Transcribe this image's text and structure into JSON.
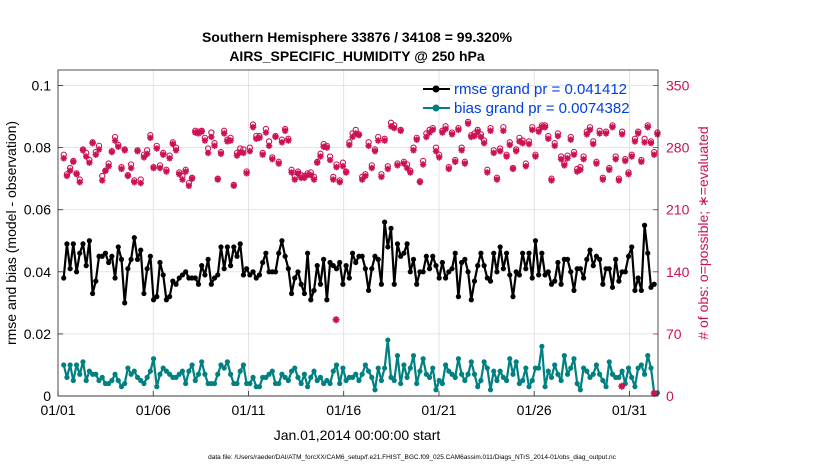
{
  "chart_data": {
    "type": "line",
    "title": "Southern Hemisphere 33876 / 34108 = 99.320%",
    "subtitle": "AIRS_SPECIFIC_HUMIDITY @ 250 hPa",
    "xlabel": "Jan.01,2014 00:00:00 start",
    "ylabel": "rmse and bias (model - observation)",
    "y2label": "# of obs: o=possible; ∗=evaluated",
    "footer": "data file: /Users/raeder/DAI/ATM_forcXX/CAM6_setup/f.e21.FHIST_BGC.f09_025.CAM6assim.011/Diags_NTrS_2014-01/obs_diag_output.nc",
    "ylim": [
      0,
      0.105
    ],
    "y2lim": [
      0,
      367.5
    ],
    "xlim": [
      0,
      31.5
    ],
    "x_ticks": [
      "01/01",
      "01/06",
      "01/11",
      "01/16",
      "01/21",
      "01/26",
      "01/31"
    ],
    "y_ticks": [
      "0",
      "0.02",
      "0.04",
      "0.06",
      "0.08",
      "0.1"
    ],
    "y2_ticks": [
      "0",
      "70",
      "140",
      "210",
      "280",
      "350"
    ],
    "grid": true,
    "legend_position": "top-right",
    "colors": {
      "rmse": "#000000",
      "bias": "#008080",
      "obs": "#cc1155",
      "legend_text": "#0040e0",
      "axis2": "#cc1155"
    },
    "series": [
      {
        "name": "rmse grand pr = 0.041412",
        "axis": "left",
        "values": [
          0.038,
          0.049,
          0.041,
          0.049,
          0.04,
          0.046,
          0.049,
          0.042,
          0.05,
          0.033,
          0.037,
          0.045,
          0.045,
          0.046,
          0.043,
          0.045,
          0.038,
          0.048,
          0.044,
          0.03,
          0.041,
          0.044,
          0.051,
          0.044,
          0.047,
          0.033,
          0.041,
          0.045,
          0.031,
          0.032,
          0.043,
          0.039,
          0.031,
          0.032,
          0.037,
          0.036,
          0.038,
          0.039,
          0.04,
          0.038,
          0.038,
          0.038,
          0.036,
          0.042,
          0.039,
          0.044,
          0.036,
          0.038,
          0.039,
          0.048,
          0.041,
          0.048,
          0.042,
          0.048,
          0.045,
          0.049,
          0.039,
          0.041,
          0.039,
          0.04,
          0.038,
          0.039,
          0.043,
          0.046,
          0.04,
          0.04,
          0.04,
          0.046,
          0.05,
          0.045,
          0.041,
          0.033,
          0.038,
          0.04,
          0.036,
          0.033,
          0.046,
          0.031,
          0.034,
          0.042,
          0.036,
          0.044,
          0.031,
          0.043,
          0.042,
          0.041,
          0.043,
          0.036,
          0.042,
          0.038,
          0.046,
          0.043,
          0.045,
          0.045,
          0.041,
          0.034,
          0.041,
          0.045,
          0.044,
          0.036,
          0.056,
          0.048,
          0.054,
          0.036,
          0.049,
          0.045,
          0.046,
          0.049,
          0.04,
          0.044,
          0.036,
          0.04,
          0.04,
          0.045,
          0.041,
          0.045,
          0.042,
          0.038,
          0.043,
          0.038,
          0.04,
          0.041,
          0.046,
          0.032,
          0.043,
          0.044,
          0.04,
          0.031,
          0.037,
          0.042,
          0.046,
          0.042,
          0.038,
          0.037,
          0.046,
          0.04,
          0.048,
          0.041,
          0.046,
          0.039,
          0.032,
          0.04,
          0.039,
          0.046,
          0.041,
          0.046,
          0.038,
          0.05,
          0.039,
          0.046,
          0.039,
          0.04,
          0.036,
          0.037,
          0.043,
          0.036,
          0.044,
          0.044,
          0.04,
          0.034,
          0.041,
          0.041,
          0.038,
          0.044,
          0.047,
          0.042,
          0.045,
          0.044,
          0.036,
          0.041,
          0.041,
          0.035,
          0.044,
          0.037,
          0.04,
          0.04,
          0.045,
          0.048,
          0.034,
          0.038,
          0.034,
          0.055,
          0.046,
          0.035,
          0.036
        ]
      },
      {
        "name": "bias grand pr = 0.0074382",
        "axis": "left",
        "values": [
          0.01,
          0.006,
          0.01,
          0.005,
          0.01,
          0.007,
          0.011,
          0.005,
          0.008,
          0.007,
          0.007,
          0.005,
          0.006,
          0.004,
          0.004,
          0.005,
          0.007,
          0.005,
          0.003,
          0.004,
          0.009,
          0.007,
          0.008,
          0.006,
          0.005,
          0.004,
          0.006,
          0.008,
          0.012,
          0.003,
          0.007,
          0.009,
          0.008,
          0.007,
          0.006,
          0.006,
          0.007,
          0.008,
          0.004,
          0.008,
          0.01,
          0.005,
          0.007,
          0.011,
          0.007,
          0.004,
          0.004,
          0.004,
          0.007,
          0.01,
          0.009,
          0.011,
          0.007,
          0.004,
          0.004,
          0.008,
          0.01,
          0.004,
          0.004,
          0.006,
          0.003,
          0.003,
          0.006,
          0.006,
          0.007,
          0.008,
          0.004,
          0.004,
          0.007,
          0.006,
          0.005,
          0.008,
          0.009,
          0.006,
          0.004,
          0.007,
          0.003,
          0.006,
          0.008,
          0.005,
          0.006,
          0.004,
          0.005,
          0.004,
          0.008,
          0.01,
          0.004,
          0.009,
          0.005,
          0.006,
          0.006,
          0.007,
          0.005,
          0.007,
          0.01,
          0.008,
          0.006,
          0.002,
          0.009,
          0.005,
          0.009,
          0.018,
          0.006,
          0.005,
          0.013,
          0.004,
          0.01,
          0.006,
          0.009,
          0.013,
          0.004,
          0.008,
          0.012,
          0.007,
          0.006,
          0.009,
          0.002,
          0.005,
          0.004,
          0.01,
          0.008,
          0.007,
          0.006,
          0.012,
          0.007,
          0.005,
          0.007,
          0.011,
          0.007,
          0.003,
          0.005,
          0.011,
          0.009,
          0.002,
          0.008,
          0.005,
          0.008,
          0.006,
          0.005,
          0.012,
          0.007,
          0.011,
          0.004,
          0.005,
          0.009,
          0.003,
          0.005,
          0.009,
          0.009,
          0.016,
          0.003,
          0.008,
          0.006,
          0.01,
          0.007,
          0.005,
          0.013,
          0.007,
          0.009,
          0.012,
          0.004,
          0.002,
          0.009,
          0.008,
          0.006,
          0.007,
          0.01,
          0.007,
          0.005,
          0.003,
          0.011,
          0.007,
          0.006,
          0.006,
          0.008,
          0.004,
          0.009,
          0.006,
          0.003,
          0.009,
          0.01,
          0.007,
          0.013,
          0.009,
          0.001,
          0.001
        ]
      },
      {
        "name": "# of obs possible",
        "axis": "right",
        "marker": "o",
        "values": [
          272,
          250,
          257,
          265,
          251,
          244,
          278,
          274,
          266,
          286,
          275,
          282,
          248,
          254,
          262,
          276,
          292,
          283,
          258,
          278,
          249,
          261,
          243,
          277,
          244,
          272,
          277,
          294,
          258,
          282,
          260,
          274,
          255,
          271,
          286,
          280,
          252,
          248,
          255,
          240,
          246,
          299,
          298,
          299,
          291,
          279,
          297,
          285,
          245,
          275,
          299,
          289,
          291,
          238,
          274,
          279,
          278,
          253,
          280,
          306,
          293,
          293,
          274,
          301,
          287,
          269,
          293,
          264,
          289,
          301,
          290,
          255,
          247,
          253,
          249,
          248,
          251,
          252,
          247,
          264,
          273,
          284,
          282,
          270,
          247,
          261,
          243,
          263,
          253,
          286,
          296,
          300,
          295,
          247,
          250,
          286,
          260,
          278,
          292,
          250,
          290,
          259,
          308,
          305,
          262,
          300,
          264,
          261,
          254,
          280,
          291,
          242,
          265,
          296,
          300,
          302,
          280,
          272,
          299,
          304,
          258,
          297,
          266,
          302,
          280,
          264,
          309,
          294,
          296,
          300,
          295,
          288,
          255,
          302,
          277,
          246,
          279,
          303,
          272,
          286,
          257,
          278,
          291,
          288,
          262,
          287,
          303,
          272,
          300,
          305,
          305,
          293,
          245,
          285,
          296,
          270,
          262,
          271,
          292,
          275,
          256,
          258,
          270,
          298,
          303,
          287,
          264,
          299,
          246,
          298,
          257,
          305,
          270,
          245,
          298,
          267,
          252,
          272,
          290,
          298,
          266,
          290,
          305,
          287,
          275,
          297
        ]
      },
      {
        "name": "# of obs evaluated",
        "axis": "right",
        "marker": "*",
        "values": [
          268,
          248,
          254,
          264,
          250,
          241,
          277,
          270,
          263,
          285,
          272,
          278,
          243,
          254,
          259,
          275,
          288,
          281,
          256,
          277,
          248,
          257,
          241,
          276,
          240,
          269,
          273,
          291,
          257,
          279,
          257,
          272,
          253,
          268,
          284,
          277,
          250,
          244,
          253,
          237,
          245,
          297,
          296,
          298,
          288,
          274,
          292,
          282,
          244,
          273,
          296,
          287,
          288,
          237,
          271,
          275,
          274,
          251,
          276,
          303,
          290,
          291,
          272,
          297,
          282,
          267,
          292,
          262,
          286,
          299,
          288,
          252,
          244,
          251,
          246,
          246,
          249,
          249,
          244,
          263,
          270,
          281,
          280,
          266,
          244,
          258,
          241,
          259,
          252,
          283,
          292,
          296,
          294,
          244,
          248,
          282,
          257,
          276,
          288,
          247,
          288,
          256,
          304,
          302,
          260,
          299,
          262,
          257,
          252,
          277,
          289,
          241,
          261,
          292,
          297,
          300,
          276,
          269,
          297,
          301,
          256,
          295,
          264,
          300,
          277,
          262,
          307,
          292,
          293,
          298,
          292,
          285,
          252,
          299,
          274,
          244,
          276,
          299,
          270,
          283,
          256,
          276,
          287,
          285,
          259,
          284,
          300,
          270,
          298,
          303,
          303,
          290,
          243,
          282,
          293,
          267,
          260,
          268,
          289,
          272,
          253,
          255,
          267,
          295,
          300,
          284,
          262,
          296,
          244,
          296,
          255,
          303,
          267,
          243,
          295,
          265,
          250,
          270,
          287,
          296,
          264,
          286,
          303,
          285,
          272,
          295
        ]
      }
    ],
    "outliers": [
      {
        "x": 14.6,
        "value": 86,
        "axis": "right"
      },
      {
        "x": 29.6,
        "value": 11,
        "axis": "right"
      },
      {
        "x": 31.3,
        "value": 3,
        "axis": "right"
      }
    ]
  }
}
